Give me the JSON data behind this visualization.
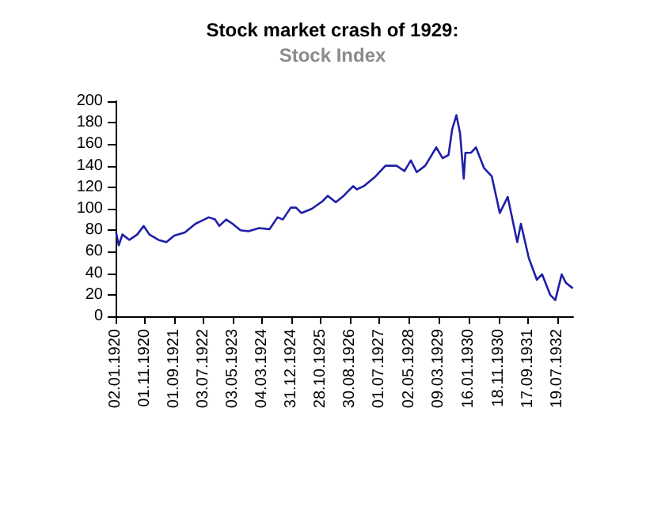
{
  "chart_data": {
    "type": "line",
    "title": "Stock market crash of 1929:",
    "subtitle": "Stock Index",
    "x": [
      "1920-01-07",
      "1920-02-04",
      "1920-03-13",
      "1920-05-24",
      "1920-08-14",
      "1920-10-19",
      "1920-12-18",
      "1921-03-22",
      "1921-06-12",
      "1921-09-02",
      "1921-12-21",
      "1922-04-10",
      "1922-08-25",
      "1922-10-30",
      "1922-12-13",
      "1923-02-22",
      "1923-04-29",
      "1923-07-21",
      "1923-10-11",
      "1924-01-29",
      "1924-05-18",
      "1924-08-08",
      "1924-10-02",
      "1924-12-23",
      "1925-02-16",
      "1925-04-12",
      "1925-07-31",
      "1925-11-18",
      "1926-01-12",
      "1926-04-04",
      "1926-06-25",
      "1926-10-02",
      "1926-11-09",
      "1927-01-20",
      "1927-05-21",
      "1927-09-02",
      "1927-12-26",
      "1928-03-17",
      "1928-05-22",
      "1928-07-22",
      "1928-10-18",
      "1929-02-10",
      "1929-04-17",
      "1929-06-17",
      "1929-07-25",
      "1929-09-07",
      "1929-10-15",
      "1929-11-22",
      "1929-12-09",
      "1930-02-03",
      "1930-03-29",
      "1930-06-19",
      "1930-09-09",
      "1930-12-01",
      "1931-02-21",
      "1931-05-31",
      "1931-07-08",
      "1931-09-28",
      "1931-12-20",
      "1932-02-13",
      "1932-05-06",
      "1932-06-29",
      "1932-09-03",
      "1932-10-17",
      "1932-12-27"
    ],
    "series": [
      {
        "color": "#1f1fa8",
        "values": [
          78,
          66,
          76,
          71,
          76,
          84,
          76,
          71,
          69,
          75,
          78,
          86,
          92,
          90,
          84,
          90,
          86,
          80,
          79,
          82,
          81,
          92,
          90,
          101,
          101,
          96,
          100,
          107,
          112,
          106,
          112,
          121,
          118,
          121,
          130,
          140,
          140,
          135,
          145,
          134,
          140,
          157,
          147,
          150,
          174,
          187,
          170,
          128,
          152,
          152,
          157,
          138,
          130,
          96,
          111,
          69,
          86,
          54,
          34,
          39,
          20,
          15,
          39,
          31,
          26
        ]
      }
    ],
    "xlim": [
      "1920-01-02",
      "1932-12-31"
    ],
    "xticks": [
      {
        "value": "1920-01-02",
        "label": "02.01.1920"
      },
      {
        "value": "1920-11-01",
        "label": "01.11.1920"
      },
      {
        "value": "1921-09-01",
        "label": "01.09.1921"
      },
      {
        "value": "1922-07-03",
        "label": "03.07.1922"
      },
      {
        "value": "1923-05-03",
        "label": "03.05.1923"
      },
      {
        "value": "1924-03-04",
        "label": "04.03.1924"
      },
      {
        "value": "1924-12-31",
        "label": "31.12.1924"
      },
      {
        "value": "1925-10-28",
        "label": "28.10.1925"
      },
      {
        "value": "1926-08-30",
        "label": "30.08.1926"
      },
      {
        "value": "1927-07-01",
        "label": "01.07.1927"
      },
      {
        "value": "1928-05-02",
        "label": "02.05.1928"
      },
      {
        "value": "1929-03-09",
        "label": "09.03.1929"
      },
      {
        "value": "1930-01-16",
        "label": "16.01.1930"
      },
      {
        "value": "1930-11-18",
        "label": "18.11.1930"
      },
      {
        "value": "1931-09-17",
        "label": "17.09.1931"
      },
      {
        "value": "1932-07-19",
        "label": "19.07.1932"
      }
    ],
    "ylim": [
      0,
      200
    ],
    "yticks": [
      0,
      20,
      40,
      60,
      80,
      100,
      120,
      140,
      160,
      180,
      200
    ],
    "grid": false,
    "marker": "none",
    "line_style": "solid"
  }
}
